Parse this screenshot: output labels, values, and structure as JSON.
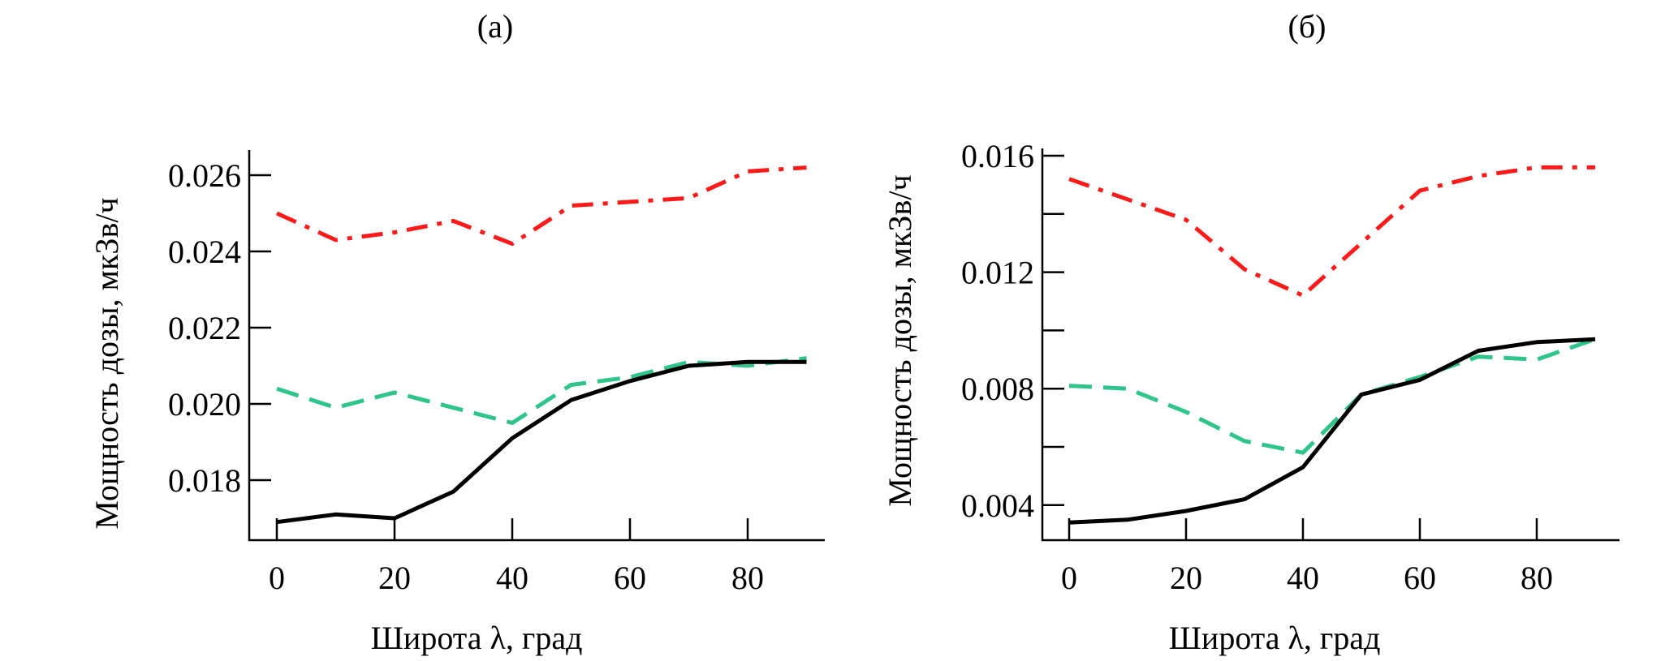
{
  "colors": {
    "red_series": "#ff1a1a",
    "green_series": "#2ec48a",
    "black_series": "#000000"
  },
  "chart_data": [
    {
      "panel": "(a)",
      "type": "line",
      "title": "(a)",
      "xlabel": "Широта λ, град",
      "ylabel": "Мощность дозы, мкЗв/ч",
      "xlim": [
        0,
        90
      ],
      "ylim": [
        0.0168,
        0.0267
      ],
      "xticks": [
        0,
        20,
        40,
        60,
        80
      ],
      "xtick_labels": [
        "0",
        "20",
        "40",
        "60",
        "80"
      ],
      "yticks": [
        0.018,
        0.02,
        0.022,
        0.024,
        0.026
      ],
      "ytick_labels": [
        "0.018",
        "0.020",
        "0.022",
        "0.024",
        "0.026"
      ],
      "grid": false,
      "legend": "none",
      "x": [
        0,
        10,
        20,
        30,
        40,
        50,
        60,
        70,
        80,
        90
      ],
      "series": [
        {
          "name": "red dash-dot",
          "style": "dashdot",
          "color_key": "red_series",
          "values": [
            0.025,
            0.0243,
            0.0245,
            0.0248,
            0.0242,
            0.0252,
            0.0253,
            0.0254,
            0.0261,
            0.0262
          ]
        },
        {
          "name": "green dashed",
          "style": "dashed",
          "color_key": "green_series",
          "values": [
            0.0204,
            0.0199,
            0.0203,
            0.0199,
            0.0195,
            0.0205,
            0.0207,
            0.0211,
            0.021,
            0.0212
          ]
        },
        {
          "name": "black solid",
          "style": "solid",
          "color_key": "black_series",
          "values": [
            0.0169,
            0.0171,
            0.017,
            0.0177,
            0.0191,
            0.0201,
            0.0206,
            0.021,
            0.0211,
            0.0211
          ]
        }
      ]
    },
    {
      "panel": "(б)",
      "type": "line",
      "title": "(б)",
      "xlabel": "Широта λ, град",
      "ylabel": "Мощность дозы, мкЗв/ч",
      "xlim": [
        0,
        90
      ],
      "ylim": [
        0.0028,
        0.0165
      ],
      "xticks": [
        0,
        20,
        40,
        60,
        80
      ],
      "xtick_labels": [
        "0",
        "20",
        "40",
        "60",
        "80"
      ],
      "yticks": [
        0.004,
        0.006,
        0.008,
        0.01,
        0.012,
        0.014,
        0.016
      ],
      "ytick_labels": [
        "0.004",
        "",
        "0.008",
        "",
        "0.012",
        "",
        "0.016"
      ],
      "grid": false,
      "legend": "none",
      "x": [
        0,
        10,
        20,
        30,
        40,
        50,
        60,
        70,
        80,
        90
      ],
      "series": [
        {
          "name": "red dash-dot",
          "style": "dashdot",
          "color_key": "red_series",
          "values": [
            0.0152,
            0.0145,
            0.0138,
            0.0121,
            0.0112,
            0.013,
            0.0148,
            0.0153,
            0.0156,
            0.0156
          ]
        },
        {
          "name": "green dashed",
          "style": "dashed",
          "color_key": "green_series",
          "values": [
            0.0081,
            0.008,
            0.0072,
            0.0062,
            0.0058,
            0.0078,
            0.0084,
            0.0091,
            0.009,
            0.0097
          ]
        },
        {
          "name": "black solid",
          "style": "solid",
          "color_key": "black_series",
          "values": [
            0.0034,
            0.0035,
            0.0038,
            0.0042,
            0.0053,
            0.0078,
            0.0083,
            0.0093,
            0.0096,
            0.0097
          ]
        }
      ]
    }
  ]
}
